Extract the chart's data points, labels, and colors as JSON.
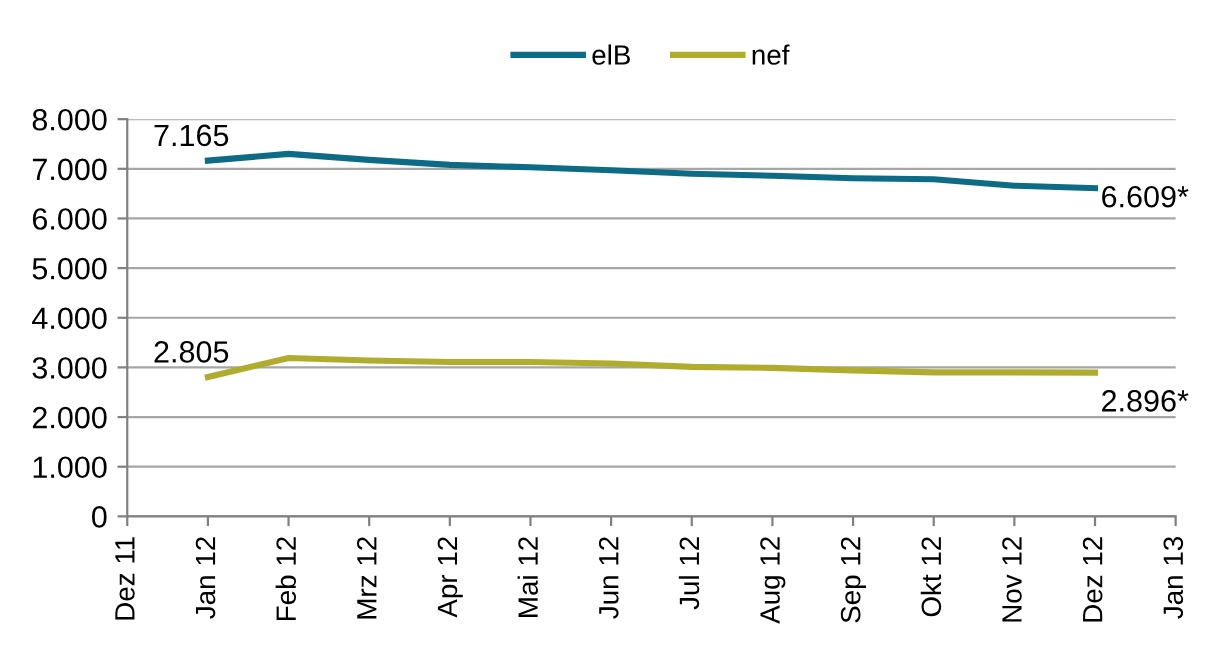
{
  "chart_data": {
    "type": "line",
    "categories": [
      "Dez 11",
      "Jan 12",
      "Feb 12",
      "Mrz 12",
      "Apr 12",
      "Mai 12",
      "Jun 12",
      "Jul 12",
      "Aug 12",
      "Sep 12",
      "Okt 12",
      "Nov 12",
      "Dez 12",
      "Jan 13"
    ],
    "series": [
      {
        "name": "elB",
        "color": "#0e6b85",
        "values": [
          null,
          7165,
          7300,
          7180,
          7080,
          7030,
          6970,
          6900,
          6860,
          6810,
          6790,
          6660,
          6609,
          null
        ],
        "value_labels": [
          null,
          "7.165",
          null,
          null,
          null,
          null,
          null,
          null,
          null,
          null,
          null,
          null,
          "6.609*",
          null
        ]
      },
      {
        "name": "nef",
        "color": "#b0ad2e",
        "values": [
          null,
          2805,
          3190,
          3140,
          3110,
          3110,
          3080,
          3010,
          2990,
          2940,
          2900,
          2900,
          2896,
          null
        ],
        "value_labels": [
          null,
          "2.805",
          null,
          null,
          null,
          null,
          null,
          null,
          null,
          null,
          null,
          null,
          "2.896*",
          null
        ]
      }
    ],
    "ylim": [
      0,
      8000
    ],
    "yticks": [
      0,
      {
        "value": 1000,
        "label": "1.000"
      },
      {
        "value": 2000,
        "label": "2.000"
      },
      {
        "value": 3000,
        "label": "3.000"
      },
      {
        "value": 4000,
        "label": "4.000"
      },
      {
        "value": 5000,
        "label": "5.000"
      },
      {
        "value": 6000,
        "label": "6.000"
      },
      {
        "value": 7000,
        "label": "7.000"
      },
      {
        "value": 8000,
        "label": "8.000"
      }
    ],
    "grid": "y",
    "legend": "top",
    "marker": "none",
    "line_style": "solid"
  }
}
